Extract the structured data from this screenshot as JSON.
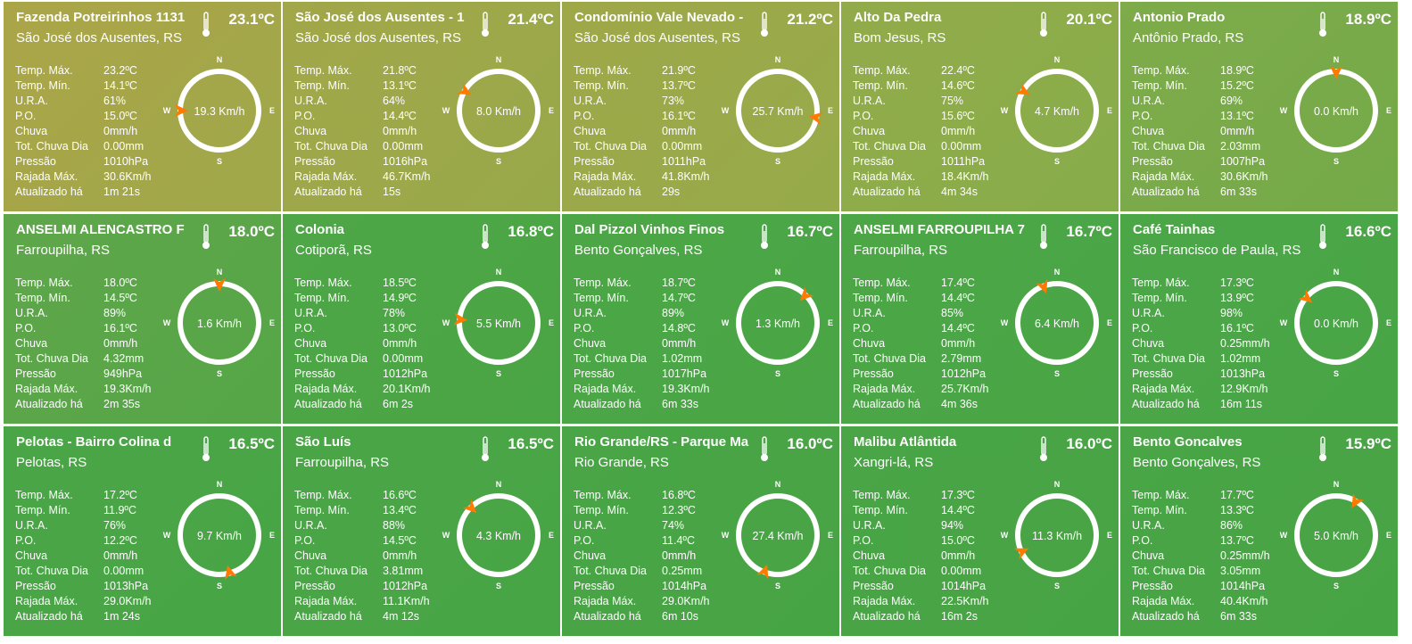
{
  "labels": {
    "temp_max": "Temp. Máx.",
    "temp_min": "Temp. Mín.",
    "ura": "U.R.A.",
    "po": "P.O.",
    "chuva": "Chuva",
    "tot_chuva_dia": "Tot. Chuva Dia",
    "pressao": "Pressão",
    "rajada_max": "Rajada Máx.",
    "atualizado": "Atualizado há"
  },
  "compass_labels": {
    "n": "N",
    "s": "S",
    "e": "E",
    "w": "W"
  },
  "icons": {
    "temperature": "thermometer-icon",
    "wind": "wind-direction-arrow-icon"
  },
  "colors": {
    "arrow": "#ff7a00",
    "text": "#ffffff",
    "warm_card": "#a6a848",
    "mid_card": "#8aab48",
    "cool_card": "#4aa546"
  },
  "stations": [
    {
      "name": "Fazenda Potreirinhos 1131",
      "city": "São José dos Ausentes, RS",
      "temp": "23.1ºC",
      "temp_max": "23.2ºC",
      "temp_min": "14.1ºC",
      "ura": "61%",
      "po": "15.0ºC",
      "chuva": "0mm/h",
      "tot_chuva_dia": "0.00mm",
      "pressao": "1010hPa",
      "rajada_max": "30.6Km/h",
      "atualizado": "1m 21s",
      "wind_speed": "19.3 Km/h",
      "wind_dir_deg": 270,
      "bg1": "#aba548",
      "bg2": "#9fa84a"
    },
    {
      "name": "São José dos Ausentes - 1",
      "city": "São José dos Ausentes, RS",
      "temp": "21.4ºC",
      "temp_max": "21.8ºC",
      "temp_min": "13.1ºC",
      "ura": "64%",
      "po": "14.4ºC",
      "chuva": "0mm/h",
      "tot_chuva_dia": "0.00mm",
      "pressao": "1016hPa",
      "rajada_max": "46.7Km/h",
      "atualizado": "15s",
      "wind_speed": "8.0 Km/h",
      "wind_dir_deg": 300,
      "bg1": "#a2a749",
      "bg2": "#98a94a"
    },
    {
      "name": "Condomínio Vale Nevado - ",
      "city": "São José dos Ausentes, RS",
      "temp": "21.2ºC",
      "temp_max": "21.9ºC",
      "temp_min": "13.7ºC",
      "ura": "73%",
      "po": "16.1ºC",
      "chuva": "0mm/h",
      "tot_chuva_dia": "0.00mm",
      "pressao": "1011hPa",
      "rajada_max": "41.8Km/h",
      "atualizado": "29s",
      "wind_speed": "25.7 Km/h",
      "wind_dir_deg": 100,
      "bg1": "#9fa849",
      "bg2": "#96aa4a"
    },
    {
      "name": "Alto Da Pedra",
      "city": "Bom Jesus, RS",
      "temp": "20.1ºC",
      "temp_max": "22.4ºC",
      "temp_min": "14.6ºC",
      "ura": "75%",
      "po": "15.6ºC",
      "chuva": "0mm/h",
      "tot_chuva_dia": "0.00mm",
      "pressao": "1011hPa",
      "rajada_max": "18.4Km/h",
      "atualizado": "4m 34s",
      "wind_speed": "4.7 Km/h",
      "wind_dir_deg": 300,
      "bg1": "#93ab4a",
      "bg2": "#87ac4a"
    },
    {
      "name": "Antonio Prado",
      "city": "Antônio Prado, RS",
      "temp": "18.9ºC",
      "temp_max": "18.9ºC",
      "temp_min": "15.2ºC",
      "ura": "69%",
      "po": "13.1ºC",
      "chuva": "0mm/h",
      "tot_chuva_dia": "2.03mm",
      "pressao": "1007hPa",
      "rajada_max": "30.6Km/h",
      "atualizado": "6m 33s",
      "wind_speed": "0.0 Km/h",
      "wind_dir_deg": 0,
      "bg1": "#7fab4a",
      "bg2": "#74aa49"
    },
    {
      "name": "ANSELMI ALENCASTRO F",
      "city": "Farroupilha, RS",
      "temp": "18.0ºC",
      "temp_max": "18.0ºC",
      "temp_min": "14.5ºC",
      "ura": "89%",
      "po": "16.1ºC",
      "chuva": "0mm/h",
      "tot_chuva_dia": "4.32mm",
      "pressao": "949hPa",
      "rajada_max": "19.3Km/h",
      "atualizado": "2m 35s",
      "wind_speed": "1.6 Km/h",
      "wind_dir_deg": 0,
      "bg1": "#5fa64a",
      "bg2": "#55a648"
    },
    {
      "name": "Colonia",
      "city": "Cotiporã, RS",
      "temp": "16.8ºC",
      "temp_max": "18.5ºC",
      "temp_min": "14.9ºC",
      "ura": "78%",
      "po": "13.0ºC",
      "chuva": "0mm/h",
      "tot_chuva_dia": "0.00mm",
      "pressao": "1012hPa",
      "rajada_max": "20.1Km/h",
      "atualizado": "6m 2s",
      "wind_speed": "5.5 Km/h",
      "wind_dir_deg": 275,
      "bg1": "#4ea646",
      "bg2": "#4aa545"
    },
    {
      "name": "Dal Pizzol Vinhos Finos",
      "city": "Bento Gonçalves, RS",
      "temp": "16.7ºC",
      "temp_max": "18.7ºC",
      "temp_min": "14.7ºC",
      "ura": "89%",
      "po": "14.8ºC",
      "chuva": "0mm/h",
      "tot_chuva_dia": "1.02mm",
      "pressao": "1017hPa",
      "rajada_max": "19.3Km/h",
      "atualizado": "6m 33s",
      "wind_speed": "1.3 Km/h",
      "wind_dir_deg": 45,
      "bg1": "#4ca646",
      "bg2": "#49a545"
    },
    {
      "name": "ANSELMI FARROUPILHA 7",
      "city": "Farroupilha, RS",
      "temp": "16.7ºC",
      "temp_max": "17.4ºC",
      "temp_min": "14.4ºC",
      "ura": "85%",
      "po": "14.4ºC",
      "chuva": "0mm/h",
      "tot_chuva_dia": "2.79mm",
      "pressao": "1012hPa",
      "rajada_max": "25.7Km/h",
      "atualizado": "4m 36s",
      "wind_speed": "6.4 Km/h",
      "wind_dir_deg": 340,
      "bg1": "#4ca646",
      "bg2": "#49a545"
    },
    {
      "name": "Café Tainhas",
      "city": "São Francisco de Paula, RS",
      "temp": "16.6ºC",
      "temp_max": "17.3ºC",
      "temp_min": "13.9ºC",
      "ura": "98%",
      "po": "16.1ºC",
      "chuva": "0.25mm/h",
      "tot_chuva_dia": "1.02mm",
      "pressao": "1013hPa",
      "rajada_max": "12.9Km/h",
      "atualizado": "16m 11s",
      "wind_speed": "0.0 Km/h",
      "wind_dir_deg": 310,
      "bg1": "#4ba646",
      "bg2": "#48a545"
    },
    {
      "name": "Pelotas - Bairro Colina d",
      "city": "Pelotas, RS",
      "temp": "16.5ºC",
      "temp_max": "17.2ºC",
      "temp_min": "11.9ºC",
      "ura": "76%",
      "po": "12.2ºC",
      "chuva": "0mm/h",
      "tot_chuva_dia": "0.00mm",
      "pressao": "1013hPa",
      "rajada_max": "29.0Km/h",
      "atualizado": "1m 24s",
      "wind_speed": "9.7 Km/h",
      "wind_dir_deg": 165,
      "bg1": "#4aa546",
      "bg2": "#48a545"
    },
    {
      "name": "São Luís",
      "city": "Farroupilha, RS",
      "temp": "16.5ºC",
      "temp_max": "16.6ºC",
      "temp_min": "13.4ºC",
      "ura": "88%",
      "po": "14.5ºC",
      "chuva": "0mm/h",
      "tot_chuva_dia": "3.81mm",
      "pressao": "1012hPa",
      "rajada_max": "11.1Km/h",
      "atualizado": "4m 12s",
      "wind_speed": "4.3 Km/h",
      "wind_dir_deg": 315,
      "bg1": "#4aa546",
      "bg2": "#48a545"
    },
    {
      "name": "Rio Grande/RS - Parque Ma",
      "city": "Rio Grande, RS",
      "temp": "16.0ºC",
      "temp_max": "16.8ºC",
      "temp_min": "12.3ºC",
      "ura": "74%",
      "po": "11.4ºC",
      "chuva": "0mm/h",
      "tot_chuva_dia": "0.25mm",
      "pressao": "1014hPa",
      "rajada_max": "29.0Km/h",
      "atualizado": "6m 10s",
      "wind_speed": "27.4 Km/h",
      "wind_dir_deg": 200,
      "bg1": "#49a545",
      "bg2": "#47a444"
    },
    {
      "name": "Malibu Atlântida",
      "city": "Xangri-lá, RS",
      "temp": "16.0ºC",
      "temp_max": "17.3ºC",
      "temp_min": "14.4ºC",
      "ura": "94%",
      "po": "15.0ºC",
      "chuva": "0mm/h",
      "tot_chuva_dia": "0.00mm",
      "pressao": "1014hPa",
      "rajada_max": "22.5Km/h",
      "atualizado": "16m 2s",
      "wind_speed": "11.3 Km/h",
      "wind_dir_deg": 245,
      "bg1": "#49a545",
      "bg2": "#47a444"
    },
    {
      "name": "Bento Goncalves",
      "city": "Bento Gonçalves, RS",
      "temp": "15.9ºC",
      "temp_max": "17.7ºC",
      "temp_min": "13.3ºC",
      "ura": "86%",
      "po": "13.7ºC",
      "chuva": "0.25mm/h",
      "tot_chuva_dia": "3.05mm",
      "pressao": "1014hPa",
      "rajada_max": "40.4Km/h",
      "atualizado": "6m 33s",
      "wind_speed": "5.0 Km/h",
      "wind_dir_deg": 30,
      "bg1": "#49a545",
      "bg2": "#47a444"
    }
  ]
}
